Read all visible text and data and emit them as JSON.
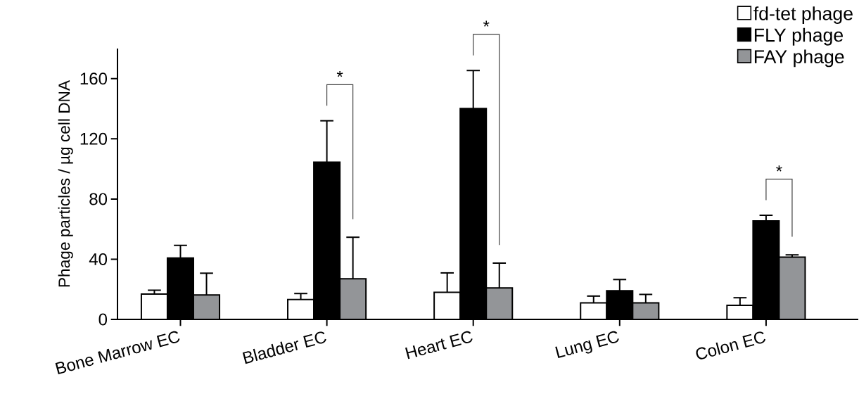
{
  "chart_data": {
    "type": "bar",
    "ylabel": "Phage particles / µg cell DNA",
    "categories": [
      "Bone Marrow EC",
      "Bladder EC",
      "Heart EC",
      "Lung EC",
      "Colon EC"
    ],
    "series": [
      {
        "name": "fd-tet phage",
        "color": "#ffffff",
        "values": [
          16.8,
          13.2,
          18.0,
          11.0,
          9.3
        ],
        "errors": [
          [
            16.8,
            19.4
          ],
          [
            13.2,
            17.2
          ],
          [
            18.0,
            30.9
          ],
          [
            11.0,
            15.5
          ],
          [
            9.3,
            14.4
          ]
        ]
      },
      {
        "name": "FLY phage",
        "color": "#000000",
        "values": [
          40.8,
          104.5,
          140.2,
          19.0,
          65.5
        ],
        "errors": [
          [
            40.8,
            49.2
          ],
          [
            104.5,
            132.0
          ],
          [
            140.2,
            165.4
          ],
          [
            19.0,
            26.5
          ],
          [
            65.5,
            69.2
          ]
        ]
      },
      {
        "name": "FAY phage",
        "color": "#939598",
        "values": [
          16.3,
          27.0,
          20.9,
          11.0,
          41.4
        ],
        "errors": [
          [
            16.3,
            30.7
          ],
          [
            27.0,
            54.6
          ],
          [
            20.9,
            37.4
          ],
          [
            11.0,
            16.6
          ],
          [
            41.4,
            42.9
          ]
        ]
      }
    ],
    "ylim": [
      0,
      180
    ],
    "yticks": [
      0,
      40,
      80,
      120,
      160
    ],
    "grid": false,
    "legend": "top right",
    "annotations": [
      {
        "text": "*",
        "x": "Bladder EC",
        "y": 132.0
      },
      {
        "text": "*",
        "x": "Heart EC",
        "y": 165.4
      },
      {
        "text": "*",
        "x": "Colon EC",
        "y": 69.2
      }
    ]
  }
}
